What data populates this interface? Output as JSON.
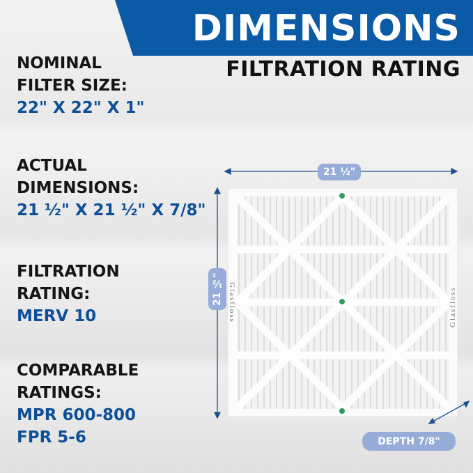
{
  "header": {
    "title": "DIMENSIONS",
    "subtitle": "FILTRATION RATING"
  },
  "sections": [
    {
      "label_lines": [
        "NOMINAL",
        "FILTER SIZE:"
      ],
      "values": [
        "22\" X 22\" X 1\""
      ]
    },
    {
      "label_lines": [
        "ACTUAL",
        "DIMENSIONS:"
      ],
      "values": [
        "21 ½\" X 21 ½\" X 7/8\""
      ]
    },
    {
      "label_lines": [
        "FILTRATION",
        "RATING:"
      ],
      "values": [
        "MERV 10"
      ]
    },
    {
      "label_lines": [
        "COMPARABLE",
        "RATINGS:"
      ],
      "values": [
        "MPR 600-800",
        "FPR 5-6"
      ]
    }
  ],
  "diagram": {
    "width_label": "21 ½\"",
    "height_label": "21 ½\"",
    "depth_label": "DEPTH 7/8\"",
    "brand": "Glasfloss"
  },
  "colors": {
    "banner": "#0a5aa6",
    "value_text": "#0e4f97",
    "pill": "#97acd8",
    "arrow": "#1d4f8f"
  }
}
